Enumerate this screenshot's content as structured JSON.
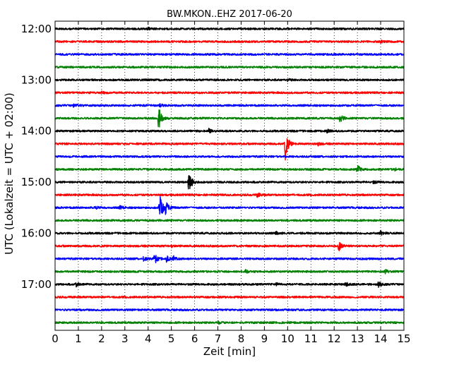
{
  "chart_data": {
    "type": "line",
    "title": "BW.MKON..EHZ 2017-06-20",
    "xlabel": "Zeit  [min]",
    "ylabel": "UTC (Lokalzeit = UTC + 02:00)",
    "xlim": [
      0,
      15
    ],
    "x_ticks": [
      "0",
      "1",
      "2",
      "3",
      "4",
      "5",
      "6",
      "7",
      "8",
      "9",
      "10",
      "11",
      "12",
      "13",
      "14",
      "15"
    ],
    "ylim_hours": [
      11.85,
      17.9
    ],
    "y_ticks": [
      {
        "label": "12:00",
        "hour": 12.0
      },
      {
        "label": "13:00",
        "hour": 13.0
      },
      {
        "label": "14:00",
        "hour": 14.0
      },
      {
        "label": "15:00",
        "hour": 15.0
      },
      {
        "label": "16:00",
        "hour": 16.0
      },
      {
        "label": "17:00",
        "hour": 17.0
      }
    ],
    "grid": true,
    "colors": [
      "#000000",
      "#ff0000",
      "#0000ff",
      "#008000"
    ],
    "series": [
      {
        "hour": 12.0,
        "events": [
          {
            "t": 4.0,
            "a": 1.5
          }
        ]
      },
      {
        "hour": 12.25,
        "events": [
          {
            "t": 14.0,
            "a": 1.2
          }
        ]
      },
      {
        "hour": 12.5,
        "events": []
      },
      {
        "hour": 12.75,
        "events": []
      },
      {
        "hour": 13.0,
        "events": [
          {
            "t": 10.0,
            "a": 1.3
          }
        ]
      },
      {
        "hour": 13.25,
        "events": [
          {
            "t": 2.0,
            "a": 1.6
          }
        ]
      },
      {
        "hour": 13.5,
        "events": [
          {
            "t": 0.8,
            "a": 2.5
          },
          {
            "t": 4.5,
            "a": 2.0
          }
        ]
      },
      {
        "hour": 13.75,
        "events": [
          {
            "t": 4.45,
            "a": 18
          },
          {
            "t": 12.25,
            "a": 6
          }
        ]
      },
      {
        "hour": 14.0,
        "events": [
          {
            "t": 6.6,
            "a": 3.5
          },
          {
            "t": 11.7,
            "a": 1.8
          }
        ]
      },
      {
        "hour": 14.25,
        "events": [
          {
            "t": 9.9,
            "a": 22
          },
          {
            "t": 11.3,
            "a": 2.0
          }
        ]
      },
      {
        "hour": 14.5,
        "events": []
      },
      {
        "hour": 14.75,
        "events": [
          {
            "t": 13.0,
            "a": 6
          },
          {
            "t": 14.6,
            "a": 2.0
          }
        ]
      },
      {
        "hour": 15.0,
        "events": [
          {
            "t": 5.75,
            "a": 19
          },
          {
            "t": 13.7,
            "a": 1.8
          }
        ]
      },
      {
        "hour": 15.25,
        "events": [
          {
            "t": 8.7,
            "a": 3.0
          }
        ]
      },
      {
        "hour": 15.5,
        "events": [
          {
            "t": 4.5,
            "a": 22
          },
          {
            "t": 4.75,
            "a": 9
          },
          {
            "t": 1.7,
            "a": 2.5
          },
          {
            "t": 2.8,
            "a": 2.5
          }
        ]
      },
      {
        "hour": 15.75,
        "events": []
      },
      {
        "hour": 16.0,
        "events": [
          {
            "t": 14.0,
            "a": 3.5
          },
          {
            "t": 9.5,
            "a": 2.0
          }
        ]
      },
      {
        "hour": 16.25,
        "events": [
          {
            "t": 12.2,
            "a": 7
          },
          {
            "t": 5.0,
            "a": 1.6
          }
        ]
      },
      {
        "hour": 16.5,
        "events": [
          {
            "t": 4.25,
            "a": 10
          },
          {
            "t": 4.8,
            "a": 6
          },
          {
            "t": 3.8,
            "a": 3.5
          },
          {
            "t": 5.1,
            "a": 3
          }
        ]
      },
      {
        "hour": 16.75,
        "events": [
          {
            "t": 8.2,
            "a": 2.0
          },
          {
            "t": 14.2,
            "a": 2.5
          }
        ]
      },
      {
        "hour": 17.0,
        "events": [
          {
            "t": 0.9,
            "a": 3.5
          },
          {
            "t": 13.9,
            "a": 3.5
          },
          {
            "t": 12.5,
            "a": 2.2
          },
          {
            "t": 9.5,
            "a": 1.8
          }
        ]
      },
      {
        "hour": 17.25,
        "events": []
      },
      {
        "hour": 17.5,
        "events": []
      },
      {
        "hour": 17.75,
        "events": [
          {
            "t": 7.0,
            "a": 1.6
          }
        ]
      }
    ]
  }
}
